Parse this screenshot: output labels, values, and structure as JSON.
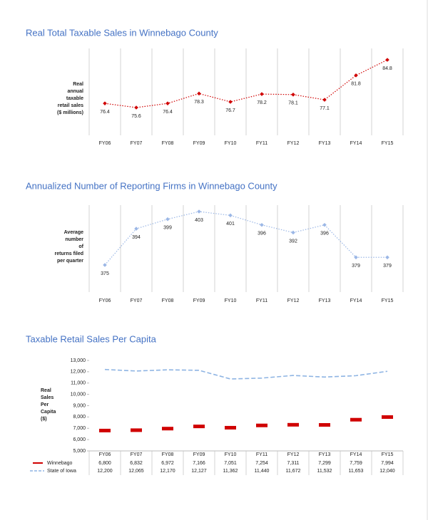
{
  "chart_data": [
    {
      "type": "line",
      "title": "Real Total Taxable Sales in Winnebago County",
      "y_label": [
        "Real",
        "annual",
        "taxable",
        "retail sales",
        "($ millions)"
      ],
      "categories": [
        "FY06",
        "FY07",
        "FY08",
        "FY09",
        "FY10",
        "FY11",
        "FY12",
        "FY13",
        "FY14",
        "FY15"
      ],
      "values": [
        76.4,
        75.6,
        76.4,
        78.3,
        76.7,
        78.2,
        78.1,
        77.1,
        81.8,
        84.8
      ],
      "color": "#d00000",
      "line_style": "dotted",
      "marker": "diamond",
      "data_labels": true
    },
    {
      "type": "line",
      "title": "Annualized Number of Reporting Firms in Winnebago County",
      "y_label": [
        "Average",
        "number",
        "of",
        "returns filed",
        "per quarter"
      ],
      "categories": [
        "FY06",
        "FY07",
        "FY08",
        "FY09",
        "FY10",
        "FY11",
        "FY12",
        "FY13",
        "FY14",
        "FY15"
      ],
      "values": [
        375,
        394,
        399,
        403,
        401,
        396,
        392,
        396,
        379,
        379
      ],
      "color": "#9bb7e6",
      "line_style": "dotted",
      "marker": "diamond",
      "data_labels": true
    },
    {
      "type": "line",
      "title": "Taxable Retail Sales Per Capita",
      "y_label": [
        "Real",
        "Sales",
        "Per",
        "Capita",
        "($)"
      ],
      "categories": [
        "FY06",
        "FY07",
        "FY08",
        "FY09",
        "FY10",
        "FY11",
        "FY12",
        "FY13",
        "FY14",
        "FY15"
      ],
      "series": [
        {
          "name": "Winnebago",
          "color": "#d00000",
          "line_style": "none",
          "marker": "bar",
          "values": [
            6800,
            6832,
            6972,
            7166,
            7051,
            7254,
            7311,
            7299,
            7759,
            7994
          ],
          "value_labels": [
            "6,800",
            "6,832",
            "6,972",
            "7,166",
            "7,051",
            "7,254",
            "7,311",
            "7,299",
            "7,759",
            "7,994"
          ]
        },
        {
          "name": "State of Iowa",
          "color": "#8eb4e3",
          "line_style": "dashed",
          "marker": "none",
          "values": [
            12200,
            12065,
            12170,
            12127,
            11362,
            11440,
            11672,
            11532,
            11653,
            12040
          ],
          "value_labels": [
            "12,200",
            "12,065",
            "12,170",
            "12,127",
            "11,362",
            "11,440",
            "11,672",
            "11,532",
            "11,653",
            "12,040"
          ]
        }
      ],
      "ylim": [
        5000,
        13000
      ],
      "yticks": [
        {
          "value": 5000,
          "label": "5,000"
        },
        {
          "value": 6000,
          "label": "6,000"
        },
        {
          "value": 7000,
          "label": "7,000"
        },
        {
          "value": 8000,
          "label": "8,000"
        },
        {
          "value": 9000,
          "label": "9,000"
        },
        {
          "value": 10000,
          "label": "10,000"
        },
        {
          "value": 11000,
          "label": "11,000"
        },
        {
          "value": 12000,
          "label": "12,000"
        },
        {
          "value": 13000,
          "label": "13,000"
        }
      ],
      "data_table": true
    }
  ]
}
